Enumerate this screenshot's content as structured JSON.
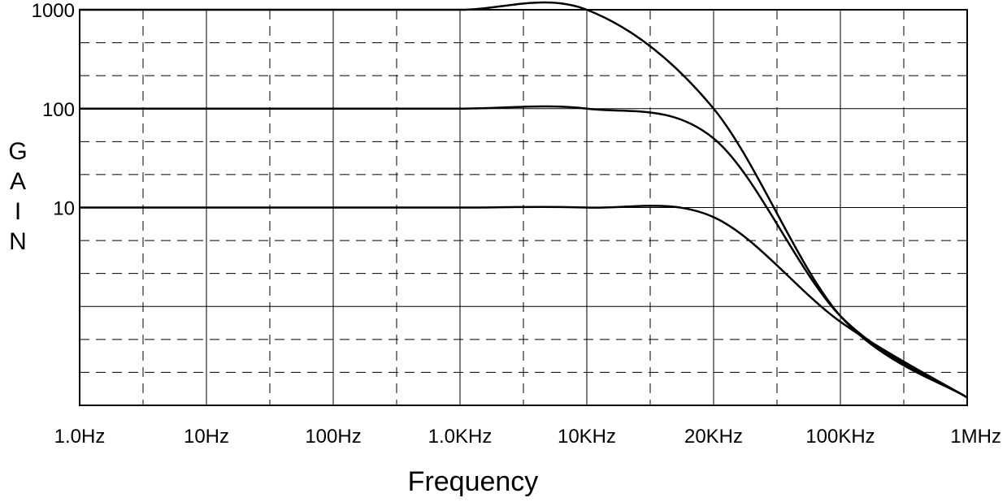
{
  "chart_data": {
    "type": "line",
    "title": "",
    "xlabel": "Frequency",
    "ylabel_letters": [
      "G",
      "A",
      "I",
      "N"
    ],
    "x_tick_labels": [
      "1.0Hz",
      "10Hz",
      "100Hz",
      "1.0KHz",
      "10KHz",
      "20KHz",
      "100KHz",
      "1MHz"
    ],
    "y_tick_labels": [
      "1000",
      "100",
      "10"
    ],
    "x_scale": "log (decade per major gridline)",
    "y_scale": "log",
    "ylim": [
      0.1,
      1000
    ],
    "grid": {
      "major": "solid",
      "minor": "dashed"
    },
    "series": [
      {
        "x": [
          "1.0Hz",
          "10Hz",
          "100Hz",
          "1.0KHz",
          "10KHz",
          "20KHz",
          "100KHz",
          "1MHz"
        ],
        "values": [
          1000,
          1000,
          1000,
          1000,
          1000,
          100,
          0.8,
          0.12
        ]
      },
      {
        "x": [
          "1.0Hz",
          "10Hz",
          "100Hz",
          "1.0KHz",
          "10KHz",
          "20KHz",
          "100KHz",
          "1MHz"
        ],
        "values": [
          100,
          100,
          100,
          100,
          100,
          50,
          0.8,
          0.12
        ]
      },
      {
        "x": [
          "1.0Hz",
          "10Hz",
          "100Hz",
          "1.0KHz",
          "10KHz",
          "20KHz",
          "100KHz",
          "1MHz"
        ],
        "values": [
          10,
          10,
          10,
          10,
          10,
          8,
          0.7,
          0.12
        ]
      }
    ]
  }
}
